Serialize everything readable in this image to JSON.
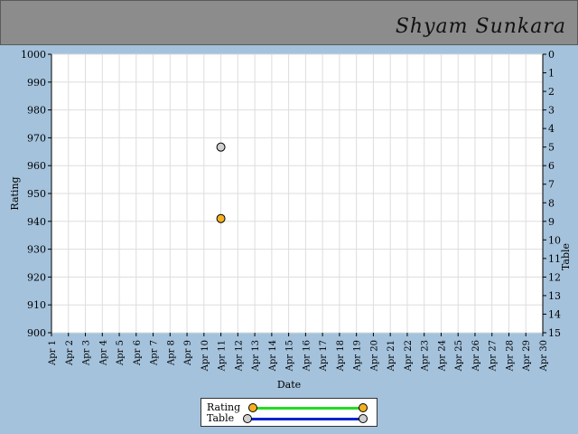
{
  "header": {
    "name": "Shyam Sunkara"
  },
  "chart_data": {
    "type": "scatter",
    "xlabel": "Date",
    "ylabel": "Rating",
    "y2label": "Table",
    "x_ticks": [
      "Apr 1",
      "Apr 2",
      "Apr 3",
      "Apr 4",
      "Apr 5",
      "Apr 6",
      "Apr 7",
      "Apr 8",
      "Apr 9",
      "Apr 10",
      "Apr 11",
      "Apr 12",
      "Apr 13",
      "Apr 14",
      "Apr 15",
      "Apr 16",
      "Apr 17",
      "Apr 18",
      "Apr 19",
      "Apr 20",
      "Apr 21",
      "Apr 22",
      "Apr 23",
      "Apr 24",
      "Apr 25",
      "Apr 26",
      "Apr 27",
      "Apr 28",
      "Apr 29",
      "Apr 30"
    ],
    "ylim": [
      900,
      1000
    ],
    "y_ticks": [
      900,
      910,
      920,
      930,
      940,
      950,
      960,
      970,
      980,
      990,
      1000
    ],
    "y2lim": [
      15,
      0
    ],
    "y2_ticks": [
      0,
      1,
      2,
      3,
      4,
      5,
      6,
      7,
      8,
      9,
      10,
      11,
      12,
      13,
      14,
      15
    ],
    "grid": true,
    "series": [
      {
        "name": "Rating",
        "axis": "left",
        "line_color": "#22dd22",
        "marker_color": "#f5b021",
        "points": [
          {
            "x": "Apr 11",
            "y": 941
          }
        ]
      },
      {
        "name": "Table",
        "axis": "right",
        "line_color": "#0022cc",
        "marker_color": "#d0d0d0",
        "points": [
          {
            "x": "Apr 11",
            "y": 5
          }
        ]
      }
    ],
    "legend_position": "bottom-center"
  }
}
